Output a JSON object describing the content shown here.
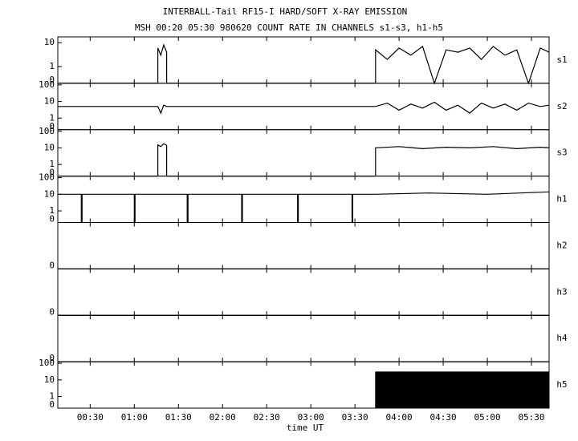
{
  "chart_data": [
    {
      "type": "line",
      "title": "INTERBALL-Tail RF15-I HARD/SOFT X-RAY EMISSION",
      "subtitle": "MSH 00:20 05:30 980620  COUNT RATE IN CHANNELS s1-s3, h1-h5",
      "name": "s1",
      "color": "#000000",
      "yscale": "log",
      "xlim": [
        8,
        342
      ],
      "xticks": [
        {
          "value": 30,
          "label": "00:30"
        },
        {
          "value": 60,
          "label": "01:00"
        },
        {
          "value": 90,
          "label": "01:30"
        },
        {
          "value": 120,
          "label": "02:00"
        },
        {
          "value": 150,
          "label": "02:30"
        },
        {
          "value": 180,
          "label": "03:00"
        },
        {
          "value": 210,
          "label": "03:30"
        },
        {
          "value": 240,
          "label": "04:00"
        },
        {
          "value": 270,
          "label": "04:30"
        },
        {
          "value": 300,
          "label": "05:00"
        },
        {
          "value": 330,
          "label": "05:30"
        }
      ],
      "ylim": [
        0,
        15
      ],
      "yticks": [
        0,
        1,
        10
      ],
      "x": [
        8,
        76,
        76,
        78,
        80,
        82,
        82,
        224,
        224,
        232,
        240,
        248,
        256,
        264,
        272,
        280,
        288,
        296,
        304,
        312,
        320,
        328,
        336,
        342
      ],
      "values": [
        0,
        0,
        6,
        3,
        8,
        4,
        0,
        0,
        5,
        2,
        6,
        3,
        7,
        0,
        5,
        4,
        6,
        2,
        7,
        3,
        5,
        0,
        6,
        4
      ]
    },
    {
      "type": "line",
      "name": "s2",
      "color": "#000000",
      "yscale": "log",
      "xlim": [
        8,
        342
      ],
      "xticks": [
        {
          "value": 30,
          "label": "00:30"
        },
        {
          "value": 60,
          "label": "01:00"
        },
        {
          "value": 90,
          "label": "01:30"
        },
        {
          "value": 120,
          "label": "02:00"
        },
        {
          "value": 150,
          "label": "02:30"
        },
        {
          "value": 180,
          "label": "03:00"
        },
        {
          "value": 210,
          "label": "03:30"
        },
        {
          "value": 240,
          "label": "04:00"
        },
        {
          "value": 270,
          "label": "04:30"
        },
        {
          "value": 300,
          "label": "05:00"
        },
        {
          "value": 330,
          "label": "05:30"
        }
      ],
      "ylim": [
        0,
        100
      ],
      "yticks": [
        0,
        1,
        10,
        100
      ],
      "x": [
        8,
        40,
        76,
        78,
        80,
        82,
        120,
        160,
        200,
        224,
        232,
        240,
        248,
        256,
        264,
        272,
        280,
        288,
        296,
        304,
        312,
        320,
        328,
        336,
        342
      ],
      "values": [
        5,
        5,
        5,
        2,
        6,
        5,
        5,
        5,
        5,
        5,
        8,
        3,
        7,
        4,
        9,
        3,
        6,
        2,
        8,
        4,
        7,
        3,
        8,
        5,
        6
      ]
    },
    {
      "type": "line",
      "name": "s3",
      "color": "#000000",
      "yscale": "log",
      "xlim": [
        8,
        342
      ],
      "xticks": [
        {
          "value": 30,
          "label": "00:30"
        },
        {
          "value": 60,
          "label": "01:00"
        },
        {
          "value": 90,
          "label": "01:30"
        },
        {
          "value": 120,
          "label": "02:00"
        },
        {
          "value": 150,
          "label": "02:30"
        },
        {
          "value": 180,
          "label": "03:00"
        },
        {
          "value": 210,
          "label": "03:30"
        },
        {
          "value": 240,
          "label": "04:00"
        },
        {
          "value": 270,
          "label": "04:30"
        },
        {
          "value": 300,
          "label": "05:00"
        },
        {
          "value": 330,
          "label": "05:30"
        }
      ],
      "ylim": [
        0,
        100
      ],
      "yticks": [
        0,
        1,
        10,
        100
      ],
      "x": [
        8,
        76,
        76,
        78,
        80,
        82,
        82,
        224,
        224,
        240,
        256,
        272,
        288,
        304,
        320,
        336,
        342
      ],
      "values": [
        0,
        0,
        15,
        12,
        18,
        14,
        0,
        0,
        10,
        12,
        9,
        11,
        10,
        12,
        9,
        11,
        10
      ]
    },
    {
      "type": "line",
      "name": "h1",
      "color": "#000000",
      "yscale": "log",
      "xlim": [
        8,
        342
      ],
      "xticks": [
        {
          "value": 30,
          "label": "00:30"
        },
        {
          "value": 60,
          "label": "01:00"
        },
        {
          "value": 90,
          "label": "01:30"
        },
        {
          "value": 120,
          "label": "02:00"
        },
        {
          "value": 150,
          "label": "02:30"
        },
        {
          "value": 180,
          "label": "03:00"
        },
        {
          "value": 210,
          "label": "03:30"
        },
        {
          "value": 240,
          "label": "04:00"
        },
        {
          "value": 270,
          "label": "04:30"
        },
        {
          "value": 300,
          "label": "05:00"
        },
        {
          "value": 330,
          "label": "05:30"
        }
      ],
      "ylim": [
        0,
        100
      ],
      "yticks": [
        0,
        1,
        10,
        100
      ],
      "x": [
        8,
        24,
        24,
        24.5,
        24.5,
        60,
        60,
        60.5,
        60.5,
        96,
        96,
        96.5,
        96.5,
        133,
        133,
        133.5,
        133.5,
        171,
        171,
        171.5,
        171.5,
        208,
        208,
        208.5,
        208.5,
        224,
        260,
        300,
        342
      ],
      "values": [
        10,
        10,
        0,
        0,
        10,
        10,
        0,
        0,
        10,
        10,
        0,
        0,
        10,
        10,
        0,
        0,
        10,
        10,
        0,
        0,
        10,
        10,
        0,
        0,
        10,
        10,
        12,
        10,
        14
      ]
    },
    {
      "type": "line",
      "name": "h2",
      "color": "#000000",
      "yscale": "log",
      "xlim": [
        8,
        342
      ],
      "xticks": [
        {
          "value": 30,
          "label": "00:30"
        },
        {
          "value": 60,
          "label": "01:00"
        },
        {
          "value": 90,
          "label": "01:30"
        },
        {
          "value": 120,
          "label": "02:00"
        },
        {
          "value": 150,
          "label": "02:30"
        },
        {
          "value": 180,
          "label": "03:00"
        },
        {
          "value": 210,
          "label": "03:30"
        },
        {
          "value": 240,
          "label": "04:00"
        },
        {
          "value": 270,
          "label": "04:30"
        },
        {
          "value": 300,
          "label": "05:00"
        },
        {
          "value": 330,
          "label": "05:30"
        }
      ],
      "ylim": [
        0,
        1
      ],
      "yticks": [
        0
      ],
      "x": [
        8,
        342
      ],
      "values": [
        0,
        0
      ]
    },
    {
      "type": "line",
      "name": "h3",
      "color": "#000000",
      "yscale": "log",
      "xlim": [
        8,
        342
      ],
      "xticks": [
        {
          "value": 30,
          "label": "00:30"
        },
        {
          "value": 60,
          "label": "01:00"
        },
        {
          "value": 90,
          "label": "01:30"
        },
        {
          "value": 120,
          "label": "02:00"
        },
        {
          "value": 150,
          "label": "02:30"
        },
        {
          "value": 180,
          "label": "03:00"
        },
        {
          "value": 210,
          "label": "03:30"
        },
        {
          "value": 240,
          "label": "04:00"
        },
        {
          "value": 270,
          "label": "04:30"
        },
        {
          "value": 300,
          "label": "05:00"
        },
        {
          "value": 330,
          "label": "05:30"
        }
      ],
      "ylim": [
        0,
        1
      ],
      "yticks": [
        0
      ],
      "x": [
        8,
        342
      ],
      "values": [
        0,
        0
      ]
    },
    {
      "type": "line",
      "name": "h4",
      "color": "#000000",
      "yscale": "log",
      "xlim": [
        8,
        342
      ],
      "xticks": [
        {
          "value": 30,
          "label": "00:30"
        },
        {
          "value": 60,
          "label": "01:00"
        },
        {
          "value": 90,
          "label": "01:30"
        },
        {
          "value": 120,
          "label": "02:00"
        },
        {
          "value": 150,
          "label": "02:30"
        },
        {
          "value": 180,
          "label": "03:00"
        },
        {
          "value": 210,
          "label": "03:30"
        },
        {
          "value": 240,
          "label": "04:00"
        },
        {
          "value": 270,
          "label": "04:30"
        },
        {
          "value": 300,
          "label": "05:00"
        },
        {
          "value": 330,
          "label": "05:30"
        }
      ],
      "ylim": [
        0,
        1
      ],
      "yticks": [
        0
      ],
      "x": [
        8,
        342
      ],
      "values": [
        0,
        0
      ]
    },
    {
      "type": "area",
      "name": "h5",
      "color": "#000000",
      "yscale": "log",
      "xlabel": "time UT",
      "xlim": [
        8,
        342
      ],
      "xticks": [
        {
          "value": 30,
          "label": "00:30"
        },
        {
          "value": 60,
          "label": "01:00"
        },
        {
          "value": 90,
          "label": "01:30"
        },
        {
          "value": 120,
          "label": "02:00"
        },
        {
          "value": 150,
          "label": "02:30"
        },
        {
          "value": 180,
          "label": "03:00"
        },
        {
          "value": 210,
          "label": "03:30"
        },
        {
          "value": 240,
          "label": "04:00"
        },
        {
          "value": 270,
          "label": "04:30"
        },
        {
          "value": 300,
          "label": "05:00"
        },
        {
          "value": 330,
          "label": "05:30"
        }
      ],
      "ylim": [
        0,
        100
      ],
      "yticks": [
        0,
        1,
        10,
        100
      ],
      "x": [
        8,
        224,
        224,
        342
      ],
      "values": [
        0,
        0,
        30,
        30
      ]
    }
  ]
}
